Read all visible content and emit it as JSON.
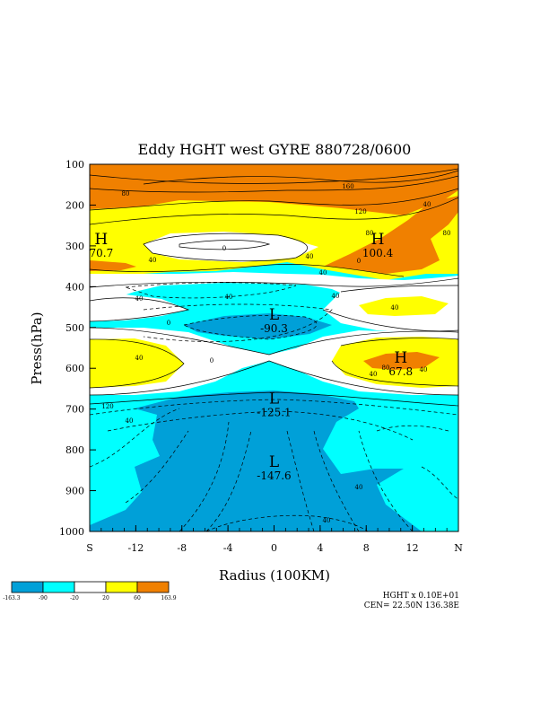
{
  "chart_data": {
    "type": "heatmap",
    "title": "Eddy HGHT west GYRE 880728/0600",
    "xlabel": "Radius (100KM)",
    "ylabel": "Press(hPa)",
    "x_ticks": [
      "S",
      "-12",
      "-8",
      "-4",
      "0",
      "4",
      "8",
      "12",
      "N"
    ],
    "x_tick_values": [
      -16,
      -12,
      -8,
      -4,
      0,
      4,
      8,
      12,
      16
    ],
    "xlim": [
      -16,
      16
    ],
    "y_ticks": [
      "100",
      "200",
      "300",
      "400",
      "500",
      "600",
      "700",
      "800",
      "900",
      "1000"
    ],
    "y_tick_values": [
      100,
      200,
      300,
      400,
      500,
      600,
      700,
      800,
      900,
      1000
    ],
    "ylim": [
      100,
      1000
    ],
    "y_inverted": true,
    "color_levels": [
      {
        "label": "-163.3",
        "color": "#00a0d8",
        "from": -163.3,
        "to": -90
      },
      {
        "label": "-90",
        "color": "#00ffff",
        "from": -90,
        "to": -20
      },
      {
        "label": "-20",
        "color": "#ffffff",
        "from": -20,
        "to": 20
      },
      {
        "label": "20",
        "color": "#ffff00",
        "from": 20,
        "to": 60
      },
      {
        "label": "60",
        "color": "#f08000",
        "from": 60,
        "to": 163.9
      }
    ],
    "colorbar_max_label": "163.9",
    "contour_labels": [
      "80",
      "160",
      "120",
      "80",
      "40",
      "0",
      "40",
      "80",
      "40",
      "0",
      "40",
      "40",
      "40",
      "0",
      "40",
      "40",
      "0",
      "40",
      "40",
      "40",
      "80",
      "120",
      "40",
      "40",
      "40"
    ],
    "extrema": [
      {
        "type": "H",
        "value": "70.7",
        "x": -15,
        "y": 305
      },
      {
        "type": "H",
        "value": "100.4",
        "x": 9,
        "y": 305
      },
      {
        "type": "L",
        "value": "-90.3",
        "x": 0,
        "y": 490
      },
      {
        "type": "H",
        "value": "67.8",
        "x": 11,
        "y": 595
      },
      {
        "type": "L",
        "value": "-125.1",
        "x": 0,
        "y": 695
      },
      {
        "type": "L",
        "value": "-147.6",
        "x": 0,
        "y": 850
      }
    ]
  },
  "footer": {
    "line1": "HGHT x  0.10E+01",
    "line2": "CEN= 22.50N  136.38E"
  }
}
